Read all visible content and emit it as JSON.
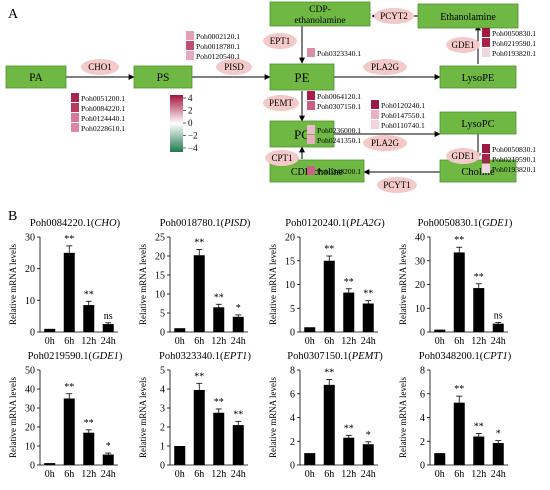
{
  "panel_a": {
    "label": "A",
    "metabolites": {
      "pa": "PA",
      "ps": "PS",
      "pe": "PE",
      "pc": "PC",
      "cdp_etn_1": "CDP-",
      "cdp_etn_2": "ethanolamine",
      "cdp_choline": "CDP-choline",
      "ethanolamine": "Ethanolamine",
      "lysope": "LysoPE",
      "lysopc": "LysoPC",
      "choline": "Choline"
    },
    "enzymes": {
      "cho1": "CHO1",
      "pisd": "PISD",
      "ept1": "EPT1",
      "pemt": "PEMT",
      "cpt1": "CPT1",
      "pla2g_top": "PLA2G",
      "pla2g_bottom": "PLA2G",
      "pcyt2": "PCYT2",
      "pcyt1": "PCYT1",
      "gde1_top": "GDE1",
      "gde1_bottom": "GDE1"
    },
    "gene_groups": {
      "cho1": [
        {
          "id": "Poh0051200.1",
          "color": "#a8234a"
        },
        {
          "id": "Poh0084220.1",
          "color": "#b8385e"
        },
        {
          "id": "Poh0124440.1",
          "color": "#d77896"
        },
        {
          "id": "Poh0228610.1",
          "color": "#dc86a1"
        }
      ],
      "pisd": [
        {
          "id": "Poh0002120.1",
          "color": "#e2a0b5"
        },
        {
          "id": "Poh0018780.1",
          "color": "#c24e72"
        },
        {
          "id": "Poh0120540.1",
          "color": "#e6aabd"
        }
      ],
      "ept1": [
        {
          "id": "Poh0323340.1",
          "color": "#d98da6"
        }
      ],
      "pemt": [
        {
          "id": "Poh0064120.1",
          "color": "#a81f48"
        },
        {
          "id": "Poh0307150.1",
          "color": "#c85f80"
        }
      ],
      "pla2g_top": [
        {
          "id": "Poh0120240.1",
          "color": "#9c1a42"
        },
        {
          "id": "Poh0147550.1",
          "color": "#e5b3c3"
        },
        {
          "id": "Poh0110740.1",
          "color": "#f1d4de"
        }
      ],
      "pla2g_bottom": [
        {
          "id": "Poh0236000.1",
          "color": "#e9bccb"
        },
        {
          "id": "Poh0241350.1",
          "color": "#e6b0c1"
        }
      ],
      "cpt1": [
        {
          "id": "Poh0348200.1",
          "color": "#c86384"
        }
      ],
      "gde1_top": [
        {
          "id": "Poh0050830.1",
          "color": "#a0183f"
        },
        {
          "id": "Poh0219590.1",
          "color": "#a8234a"
        },
        {
          "id": "Poh0193820.1",
          "color": "#f0d4de"
        }
      ],
      "gde1_bottom": [
        {
          "id": "Poh0050830.1",
          "color": "#a0183f"
        },
        {
          "id": "Poh0219590.1",
          "color": "#a8234a"
        },
        {
          "id": "Poh0193820.1",
          "color": "#f0d4de"
        }
      ]
    },
    "colorbar": {
      "ticks": [
        "4",
        "2",
        "0",
        "−2",
        "−4"
      ]
    },
    "colors": {
      "metabolite_fill": "#6fb843",
      "metabolite_border": "#4e8f2d",
      "enzyme_fill": "#f3c9c9",
      "cb_top": "#a8123d",
      "cb_mid": "#ffffff",
      "cb_bottom": "#1e7a4c"
    }
  },
  "panel_b": {
    "label": "B",
    "ylabel": "Relative mRNA levels",
    "categories": [
      "0h",
      "6h",
      "12h",
      "24h"
    ]
  },
  "chart_data": [
    {
      "type": "bar",
      "title_id": "Poh0084220.1",
      "title_gene": "CHO",
      "categories": [
        "0h",
        "6h",
        "12h",
        "24h"
      ],
      "values": [
        1,
        25,
        8.5,
        2.5
      ],
      "errors": [
        0,
        2.2,
        1.2,
        0.4
      ],
      "significance": [
        "",
        "**",
        "**",
        "ns"
      ],
      "ylim": [
        0,
        30
      ],
      "yticks": [
        0,
        10,
        20,
        30
      ]
    },
    {
      "type": "bar",
      "title_id": "Poh0018780.1",
      "title_gene": "PISD",
      "categories": [
        "0h",
        "6h",
        "12h",
        "24h"
      ],
      "values": [
        1,
        20.2,
        6.5,
        4
      ],
      "errors": [
        0,
        1.5,
        0.8,
        0.5
      ],
      "significance": [
        "",
        "**",
        "**",
        "*"
      ],
      "ylim": [
        0,
        25
      ],
      "yticks": [
        0,
        5,
        10,
        15,
        20,
        25
      ]
    },
    {
      "type": "bar",
      "title_id": "Poh0120240.1",
      "title_gene": "PLA2G",
      "categories": [
        "0h",
        "6h",
        "12h",
        "24h"
      ],
      "values": [
        1,
        15,
        8.3,
        6
      ],
      "errors": [
        0,
        1.0,
        0.8,
        0.6
      ],
      "significance": [
        "",
        "**",
        "**",
        "**"
      ],
      "ylim": [
        0,
        20
      ],
      "yticks": [
        0,
        5,
        10,
        15,
        20
      ]
    },
    {
      "type": "bar",
      "title_id": "Poh0050830.1",
      "title_gene": "GDE1",
      "categories": [
        "0h",
        "6h",
        "12h",
        "24h"
      ],
      "values": [
        1,
        33.5,
        18.5,
        3.5
      ],
      "errors": [
        0,
        2.2,
        1.8,
        0.5
      ],
      "significance": [
        "",
        "**",
        "**",
        "ns"
      ],
      "ylim": [
        0,
        40
      ],
      "yticks": [
        0,
        10,
        20,
        30,
        40
      ]
    },
    {
      "type": "bar",
      "title_id": "Poh0219590.1",
      "title_gene": "GDE1",
      "categories": [
        "0h",
        "6h",
        "12h",
        "24h"
      ],
      "values": [
        1,
        35,
        17,
        5.5
      ],
      "errors": [
        0,
        2.5,
        1.5,
        0.8
      ],
      "significance": [
        "",
        "**",
        "**",
        "*"
      ],
      "ylim": [
        0,
        50
      ],
      "yticks": [
        0,
        10,
        20,
        30,
        40,
        50
      ]
    },
    {
      "type": "bar",
      "title_id": "Poh0323340.1",
      "title_gene": "EPT1",
      "categories": [
        "0h",
        "6h",
        "12h",
        "24h"
      ],
      "values": [
        1,
        3.95,
        2.75,
        2.1
      ],
      "errors": [
        0,
        0.35,
        0.2,
        0.2
      ],
      "significance": [
        "",
        "**",
        "**",
        "**"
      ],
      "ylim": [
        0,
        5
      ],
      "yticks": [
        0,
        1,
        2,
        3,
        4,
        5
      ]
    },
    {
      "type": "bar",
      "title_id": "Poh0307150.1",
      "title_gene": "PEMT",
      "categories": [
        "0h",
        "6h",
        "12h",
        "24h"
      ],
      "values": [
        1,
        6.75,
        2.3,
        1.75
      ],
      "errors": [
        0,
        0.45,
        0.2,
        0.2
      ],
      "significance": [
        "",
        "**",
        "**",
        "*"
      ],
      "ylim": [
        0,
        8
      ],
      "yticks": [
        0,
        2,
        4,
        6,
        8
      ]
    },
    {
      "type": "bar",
      "title_id": "Poh0348200.1",
      "title_gene": "CPT1",
      "categories": [
        "0h",
        "6h",
        "12h",
        "24h"
      ],
      "values": [
        1,
        5.25,
        2.4,
        1.85
      ],
      "errors": [
        0,
        0.55,
        0.25,
        0.2
      ],
      "significance": [
        "",
        "**",
        "**",
        "*"
      ],
      "ylim": [
        0,
        8
      ],
      "yticks": [
        0,
        2,
        4,
        6,
        8
      ]
    }
  ]
}
